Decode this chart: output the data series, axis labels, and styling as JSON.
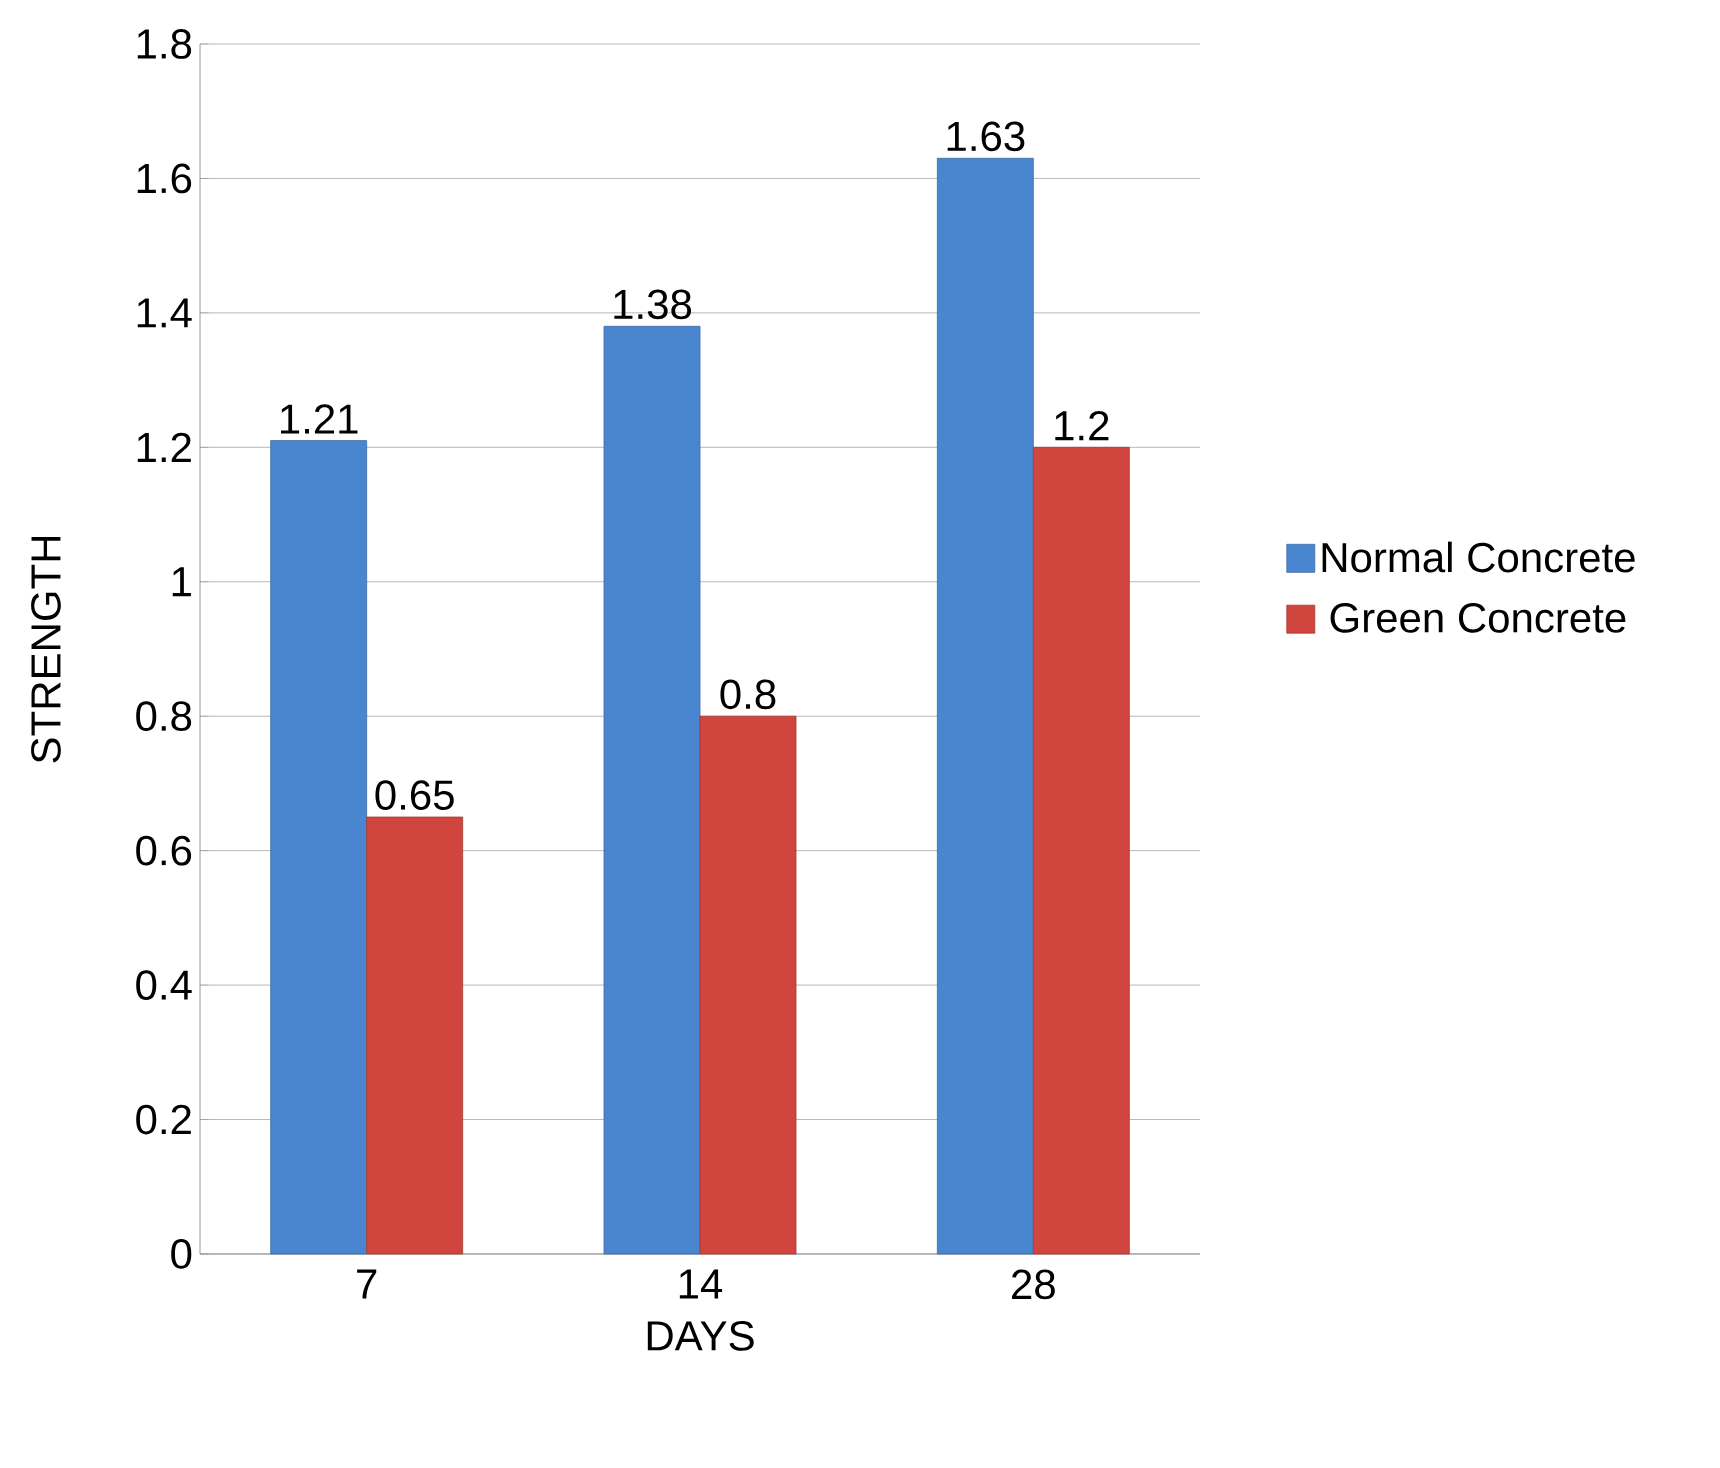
{
  "chart_data": {
    "type": "bar",
    "xlabel": "DAYS",
    "ylabel": "STRENGTH",
    "categories": [
      "7",
      "14",
      "28"
    ],
    "series": [
      {
        "name": "Normal Concrete",
        "color": "#4a86d0",
        "values": [
          1.21,
          1.38,
          1.63
        ]
      },
      {
        "name": "Green Concrete",
        "color": "#d0463f",
        "values": [
          0.65,
          0.8,
          1.2
        ]
      }
    ],
    "ylim": [
      0,
      1.8
    ],
    "yticks": [
      0,
      0.2,
      0.4,
      0.6,
      0.8,
      1,
      1.2,
      1.4,
      1.6,
      1.8
    ],
    "grid": "y",
    "legend": "right",
    "data_labels": true
  }
}
